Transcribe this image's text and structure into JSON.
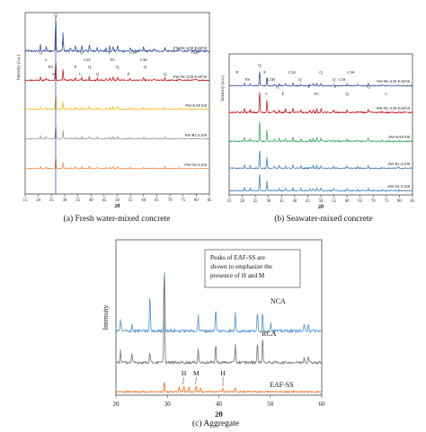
{
  "chart_data": [
    {
      "type": "line",
      "caption": "(a) Fresh water-mixed concrete",
      "xlabel": "2θ",
      "ylabel": "Intensity (a.u.)",
      "xlim": [
        15,
        85
      ],
      "x_ticks": [
        15,
        20,
        25,
        30,
        35,
        40,
        45,
        50,
        55,
        60,
        65,
        70,
        75,
        80,
        85
      ],
      "peak_labels": [
        {
          "label": "Q",
          "x": 20.8
        },
        {
          "label": "C",
          "x": 23.0
        },
        {
          "label": "FS",
          "x": 24.6
        },
        {
          "label": "E",
          "x": 25.8
        },
        {
          "label": "Q",
          "x": 26.6
        },
        {
          "label": "C",
          "x": 29.4
        },
        {
          "label": "P",
          "x": 34.1
        },
        {
          "label": "C",
          "x": 36.0
        },
        {
          "label": "Q",
          "x": 36.5
        },
        {
          "label": "C2S",
          "x": 38.5
        },
        {
          "label": "Q",
          "x": 39.5
        },
        {
          "label": "Q",
          "x": 42.4
        },
        {
          "label": "P",
          "x": 47.1
        },
        {
          "label": "FC",
          "x": 48.3
        },
        {
          "label": "Q",
          "x": 50.1
        },
        {
          "label": "P",
          "x": 54.3
        },
        {
          "label": "C3S",
          "x": 56.0
        },
        {
          "label": "C3S",
          "x": 60.0
        },
        {
          "label": "Q",
          "x": 60.5
        },
        {
          "label": "Q",
          "x": 68.1
        },
        {
          "label": "CaO",
          "x": 79.5
        }
      ],
      "series": [
        {
          "name": "FW-RCA50-EAF50",
          "color": "#1f3f8f"
        },
        {
          "name": "FW-NCA50-EAF50",
          "color": "#c00000"
        },
        {
          "name": "FW-EAF100",
          "color": "#f0b400"
        },
        {
          "name": "FW-RCA100",
          "color": "#8c8c8c"
        },
        {
          "name": "FW-NCA100",
          "color": "#ed7d31"
        }
      ]
    },
    {
      "type": "line",
      "caption": "(b) Seawater-mixed concrete",
      "xlabel": "2θ",
      "ylabel": "Intensity (a.u.)",
      "xlim": [
        15,
        85
      ],
      "x_ticks": [
        15,
        20,
        25,
        30,
        35,
        40,
        45,
        50,
        55,
        60,
        65,
        70,
        75,
        80,
        85
      ],
      "peak_labels": [
        {
          "label": "P",
          "x": 18.0
        },
        {
          "label": "FS",
          "x": 22.0
        },
        {
          "label": "Q",
          "x": 26.6
        },
        {
          "label": "C",
          "x": 29.4
        },
        {
          "label": "E",
          "x": 28.6
        },
        {
          "label": "C5H",
          "x": 31.0
        },
        {
          "label": "Q",
          "x": 33.5
        },
        {
          "label": "F",
          "x": 35.5
        },
        {
          "label": "C2S",
          "x": 39.0
        },
        {
          "label": "Q",
          "x": 42.0
        },
        {
          "label": "P",
          "x": 45.5
        },
        {
          "label": "FC",
          "x": 48.5
        },
        {
          "label": "Q",
          "x": 50.0
        },
        {
          "label": "Q",
          "x": 55.0
        },
        {
          "label": "P",
          "x": 55.5
        },
        {
          "label": "Q",
          "x": 60.0
        },
        {
          "label": "C3S",
          "x": 61.5
        },
        {
          "label": "C3S",
          "x": 58.0
        },
        {
          "label": "Q",
          "x": 68.1
        },
        {
          "label": "C",
          "x": 75.0
        }
      ],
      "series": [
        {
          "name": "SW-RCA50-EAF50",
          "color": "#1f3f8f"
        },
        {
          "name": "SW-NCA50-EAF50",
          "color": "#c00000"
        },
        {
          "name": "SW-EAF100",
          "color": "#1f9e50"
        },
        {
          "name": "SW-RCA100",
          "color": "#2e75b6"
        },
        {
          "name": "SW-NCA100",
          "color": "#2e75b6"
        }
      ]
    },
    {
      "type": "line",
      "caption": "(c) Aggregate",
      "xlabel": "2θ",
      "ylabel": "Intensity",
      "xlim": [
        20,
        60
      ],
      "x_ticks": [
        20,
        30,
        40,
        50,
        60
      ],
      "annotation": "Peaks of EAF-SS are shown to emphasize the presence of H and M",
      "annotation_lines": [
        "Peaks of EAF-SS are",
        "shown to emphasize the",
        "presence of H and M"
      ],
      "peak_labels": [
        {
          "label": "H",
          "x": 33.2
        },
        {
          "label": "M",
          "x": 35.6
        },
        {
          "label": "H",
          "x": 40.8
        }
      ],
      "series": [
        {
          "name": "NCA",
          "color": "#5b9bd5"
        },
        {
          "name": "RCA",
          "color": "#7f7f7f"
        },
        {
          "name": "EAF-SS",
          "color": "#ed7d31"
        }
      ]
    }
  ]
}
